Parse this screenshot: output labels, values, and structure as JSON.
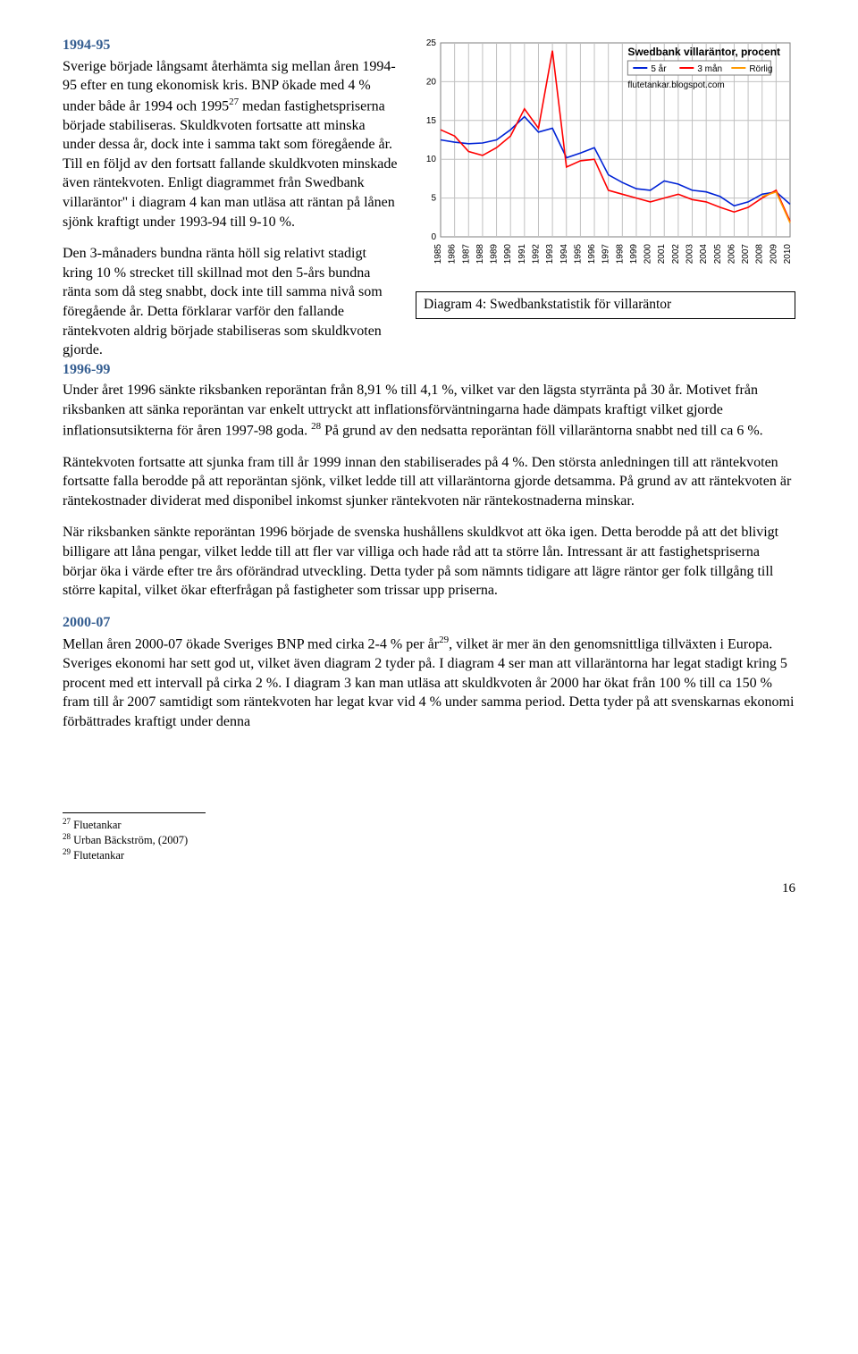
{
  "sections": {
    "s1": {
      "heading": "1994-95"
    },
    "s2": {
      "heading": "1996-99"
    },
    "s3": {
      "heading": "2000-07"
    }
  },
  "paragraphs": {
    "p1": "Sverige började långsamt återhämta sig mellan åren 1994-95 efter en tung ekonomisk kris. BNP ökade med 4 % under både år 1994 och 1995",
    "p1_sup": "27",
    "p1b": " medan fastighetspriserna började stabiliseras. Skuldkvoten fortsatte att minska under dessa år, dock inte i samma takt som föregående år. Till en följd av den fortsatt fallande skuldkvoten minskade även räntekvoten. Enligt diagrammet från Swedbank villaräntor\" i diagram 4 kan man utläsa att räntan på lånen sjönk kraftigt under 1993-94 till 9-10 %.",
    "p2": "Den 3-månaders bundna ränta höll sig relativt stadigt kring 10 % strecket till skillnad mot den 5-års bundna ränta som då steg snabbt, dock inte till samma nivå som föregående år. Detta förklarar varför den fallande räntekvoten aldrig började stabiliseras som skuldkvoten gjorde.",
    "p3": "Under året 1996 sänkte riksbanken reporäntan från 8,91 % till 4,1 %, vilket var den lägsta styrränta på 30 år. Motivet från riksbanken att sänka reporäntan var enkelt uttryckt att inflationsförväntningarna hade dämpats kraftigt vilket gjorde inflationsutsikterna för åren 1997-98 goda. ",
    "p3_sup": "28",
    "p3b": " På grund av den nedsatta reporäntan föll villaräntorna snabbt ned till ca 6 %.",
    "p4": "Räntekvoten fortsatte att sjunka fram till år 1999 innan den stabiliserades på 4 %. Den största anledningen till att räntekvoten fortsatte falla berodde på att reporäntan sjönk, vilket ledde till att villaräntorna gjorde detsamma. På grund av att räntekvoten är räntekostnader dividerat med disponibel inkomst sjunker räntekvoten när räntekostnaderna minskar.",
    "p5": "När riksbanken sänkte reporäntan 1996 började de svenska hushållens skuldkvot att öka igen. Detta berodde på att det blivigt billigare att låna pengar, vilket ledde till att fler var villiga och hade råd att ta större lån. Intressant är att fastighetspriserna börjar öka i värde efter tre års oförändrad utveckling. Detta tyder på som nämnts tidigare att lägre räntor ger folk tillgång till större kapital, vilket ökar efterfrågan på fastigheter som trissar upp priserna.",
    "p6a": "Mellan åren 2000-07 ökade Sveriges BNP med cirka 2-4 % per år",
    "p6_sup": "29",
    "p6b": ", vilket är mer än den genomsnittliga tillväxten i Europa. Sveriges ekonomi har sett god ut, vilket även diagram 2 tyder på. I diagram 4 ser man att villaräntorna har legat stadigt kring 5 procent med ett intervall på cirka 2 %. I diagram 3 kan man utläsa att skuldkvoten år 2000 har ökat från 100 % till ca 150 % fram till år 2007 samtidigt som räntekvoten har legat kvar vid 4 % under samma period. Detta tyder på att svenskarnas ekonomi förbättrades kraftigt under denna"
  },
  "chart": {
    "title": "Swedbank villaräntor, procent",
    "legend": [
      "5 år",
      "3 mån",
      "Rörlig"
    ],
    "legend_colors": [
      "#0023d6",
      "#ff0000",
      "#ff9900"
    ],
    "source": "flutetankar.blogspot.com",
    "ylim": [
      0,
      25
    ],
    "ytick_step": 5,
    "years": [
      "1985",
      "1986",
      "1987",
      "1988",
      "1989",
      "1990",
      "1991",
      "1992",
      "1993",
      "1994",
      "1995",
      "1996",
      "1997",
      "1998",
      "1999",
      "2000",
      "2001",
      "2002",
      "2003",
      "2004",
      "2005",
      "2006",
      "2007",
      "2008",
      "2009",
      "2010"
    ],
    "background": "#ffffff",
    "grid_color": "#c0c0c0",
    "series": {
      "five_year": {
        "color": "#0023d6",
        "stroke_width": 1.6,
        "points": [
          12.5,
          12.2,
          12.0,
          12.1,
          12.5,
          13.8,
          15.5,
          13.5,
          14.0,
          10.2,
          10.8,
          11.5,
          8.0,
          7.0,
          6.2,
          6.0,
          7.2,
          6.8,
          6.0,
          5.8,
          5.2,
          4.0,
          4.5,
          5.5,
          5.8,
          4.2
        ]
      },
      "three_month": {
        "color": "#ff0000",
        "stroke_width": 1.6,
        "points": [
          13.8,
          13.0,
          11.0,
          10.5,
          11.5,
          13.0,
          16.5,
          14.0,
          24.0,
          9.0,
          9.8,
          10.0,
          6.0,
          5.5,
          5.0,
          4.5,
          5.0,
          5.5,
          4.8,
          4.5,
          3.8,
          3.2,
          3.8,
          5.0,
          6.0,
          2.0
        ]
      },
      "floating": {
        "color": "#ff9900",
        "stroke_width": 1.6,
        "points": [
          null,
          null,
          null,
          null,
          null,
          null,
          null,
          null,
          null,
          null,
          null,
          null,
          null,
          null,
          null,
          null,
          null,
          null,
          null,
          null,
          null,
          null,
          null,
          5.2,
          5.8,
          1.8
        ]
      }
    },
    "caption": "Diagram 4: Swedbankstatistik för villaräntor"
  },
  "footnotes": {
    "f27": {
      "num": "27",
      "text": " Fluetankar"
    },
    "f28": {
      "num": "28",
      "text": " Urban Bäckström, (2007)"
    },
    "f29": {
      "num": "29",
      "text": " Flutetankar"
    }
  },
  "pagenum": "16"
}
